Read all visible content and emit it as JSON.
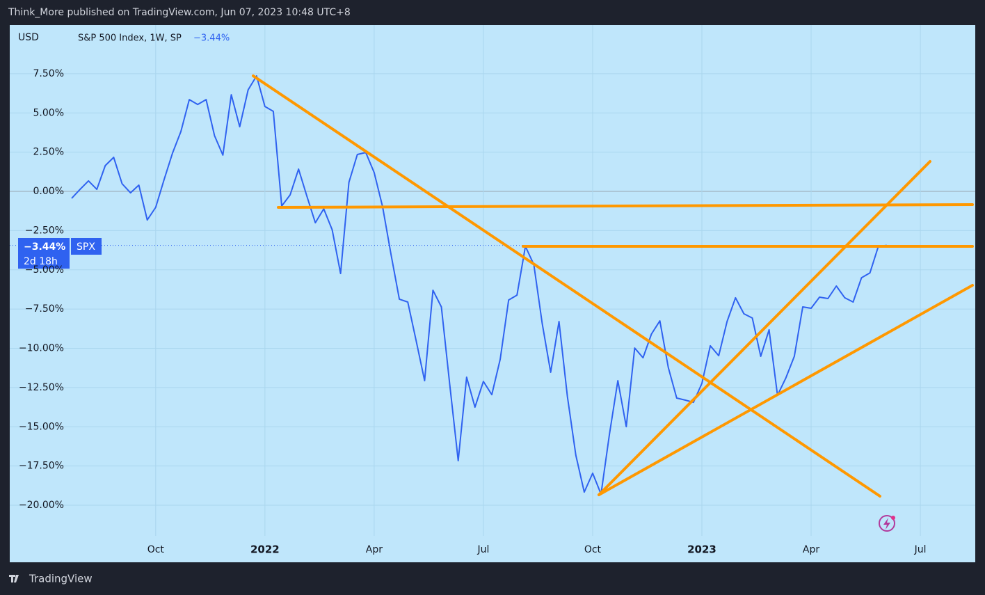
{
  "header": {
    "title": "Think_More published on TradingView.com, Jun 07, 2023 10:48 UTC+8",
    "brand": "TradingView"
  },
  "chart_data": {
    "type": "line",
    "currency": "USD",
    "legend": "S&P 500 Index, 1W, SP",
    "change": "−3.44%",
    "symbol": "SPX",
    "countdown": "2d 18h",
    "categories": [
      null,
      null,
      null,
      null,
      null,
      null,
      null,
      null,
      null,
      null,
      "Oct",
      null,
      null,
      null,
      null,
      null,
      null,
      null,
      null,
      null,
      null,
      null,
      null,
      "2022",
      null,
      null,
      null,
      null,
      null,
      null,
      null,
      null,
      null,
      null,
      null,
      null,
      "Apr",
      null,
      null,
      null,
      null,
      null,
      null,
      null,
      null,
      null,
      null,
      null,
      null,
      "Jul",
      null,
      null,
      null,
      null,
      null,
      null,
      null,
      null,
      null,
      null,
      null,
      null,
      "Oct",
      null,
      null,
      null,
      null,
      null,
      null,
      null,
      null,
      null,
      null,
      null,
      null,
      "2023",
      null,
      null,
      null,
      null,
      null,
      null,
      null,
      null,
      null,
      null,
      null,
      null,
      "Apr",
      null,
      null,
      null,
      null,
      null,
      null,
      null,
      null,
      null,
      null,
      null,
      null,
      "Jul",
      null,
      null,
      null,
      null,
      null,
      null
    ],
    "series": [
      {
        "name": "SPX",
        "color": "#2f62f0",
        "values": [
          -0.44,
          0.13,
          0.67,
          0.13,
          1.64,
          2.17,
          0.49,
          -0.09,
          0.4,
          -1.82,
          -1.02,
          0.75,
          2.44,
          3.81,
          5.85,
          5.54,
          5.85,
          3.55,
          2.31,
          6.16,
          4.12,
          6.47,
          7.36,
          5.41,
          5.1,
          -0.93,
          -0.22,
          1.42,
          -0.31,
          -2.0,
          -1.11,
          -2.44,
          -5.23,
          0.58,
          2.35,
          2.48,
          1.2,
          -0.98,
          -3.99,
          -6.87,
          -7.05,
          -9.53,
          -12.06,
          -6.3,
          -7.36,
          -12.33,
          -17.16,
          -11.84,
          -13.75,
          -12.11,
          -12.95,
          -10.69,
          -6.92,
          -6.61,
          -3.5,
          -4.66,
          -8.43,
          -11.53,
          -8.29,
          -13.08,
          -16.81,
          -19.16,
          -17.96,
          -19.29,
          -15.48,
          -12.06,
          -14.99,
          -9.98,
          -10.6,
          -9.09,
          -8.25,
          -11.22,
          -13.17,
          -13.3,
          -13.44,
          -12.24,
          -9.84,
          -10.47,
          -8.29,
          -6.78,
          -7.8,
          -8.07,
          -10.51,
          -8.82,
          -12.99,
          -11.88,
          -10.51,
          -7.36,
          -7.45,
          -6.74,
          -6.83,
          -6.03,
          -6.78,
          -7.05,
          -5.5,
          -5.19,
          -3.5,
          -3.44,
          null,
          null,
          null,
          null,
          null,
          null,
          null,
          null,
          null,
          null
        ]
      }
    ],
    "ylim": [
      -21.95,
      10.6
    ],
    "yticks": [
      {
        "value": 7.5,
        "label": "7.50%"
      },
      {
        "value": 5,
        "label": "5.00%"
      },
      {
        "value": 2.5,
        "label": "2.50%"
      },
      {
        "value": 0,
        "label": "0.00%"
      },
      {
        "value": -2.5,
        "label": "−2.50%"
      },
      {
        "value": -5,
        "label": "−5.00%"
      },
      {
        "value": -7.5,
        "label": "−7.50%"
      },
      {
        "value": -10,
        "label": "−10.00%"
      },
      {
        "value": -12.5,
        "label": "−12.50%"
      },
      {
        "value": -15,
        "label": "−15.00%"
      },
      {
        "value": -17.5,
        "label": "−17.50%"
      },
      {
        "value": -20,
        "label": "−20.00%"
      }
    ],
    "grid": true
  }
}
